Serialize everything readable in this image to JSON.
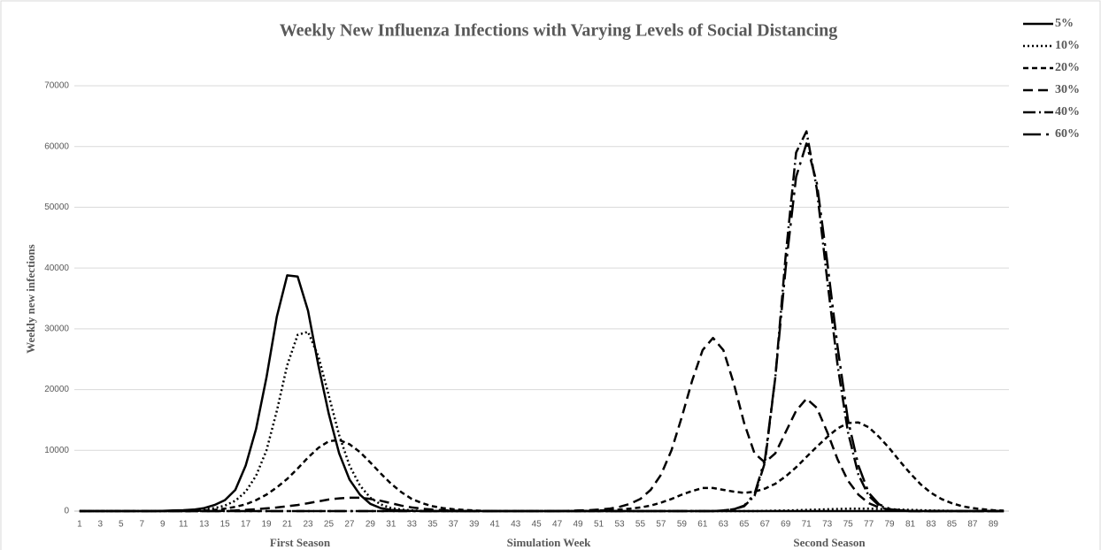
{
  "chart_data": {
    "type": "line",
    "title": "Weekly New Influenza Infections with Varying Levels of Social Distancing",
    "x_label": "Simulation Week",
    "y_label": "Weekly new infections",
    "annotations": [
      "First Season",
      "Second Season"
    ],
    "categories": [
      1,
      null,
      3,
      null,
      5,
      null,
      7,
      null,
      9,
      null,
      11,
      null,
      13,
      null,
      15,
      null,
      17,
      null,
      19,
      null,
      21,
      null,
      23,
      null,
      25,
      null,
      27,
      null,
      29,
      null,
      31,
      null,
      33,
      null,
      35,
      null,
      37,
      null,
      39,
      null,
      41,
      null,
      43,
      null,
      45,
      null,
      47,
      null,
      49,
      null,
      51,
      null,
      53,
      null,
      55,
      null,
      57,
      null,
      59,
      null,
      61,
      null,
      63,
      null,
      65,
      null,
      67,
      null,
      69,
      null,
      71,
      null,
      73,
      null,
      75,
      null,
      77,
      null,
      79,
      null,
      81,
      null,
      83,
      null,
      85,
      null,
      87,
      null,
      89,
      null
    ],
    "ylim": [
      0,
      70000
    ],
    "yticks": [
      0,
      10000,
      20000,
      30000,
      40000,
      50000,
      60000,
      70000
    ],
    "grid": true,
    "legend": "top-right",
    "series": [
      {
        "name": "5%",
        "color": "#000000",
        "dash": "none",
        "values": [
          0,
          0,
          0,
          0,
          0,
          0,
          0,
          0,
          50,
          100,
          150,
          250,
          500,
          1000,
          1800,
          3500,
          7500,
          13500,
          22000,
          32000,
          38800,
          38600,
          33000,
          24000,
          16000,
          9500,
          5200,
          2700,
          1200,
          500,
          200,
          100,
          50,
          0,
          0,
          0,
          0,
          0,
          0,
          0,
          0,
          0,
          0,
          0,
          0,
          0,
          0,
          0,
          0,
          0,
          0,
          0,
          0,
          0,
          0,
          0,
          0,
          0,
          0,
          0,
          0,
          0,
          0,
          0,
          0,
          0,
          0,
          0,
          0,
          0,
          0,
          0,
          0,
          0,
          0,
          0,
          0,
          0,
          0,
          0,
          0,
          0,
          0,
          0,
          0,
          0,
          0,
          0,
          0,
          0
        ]
      },
      {
        "name": "10%",
        "color": "#000000",
        "dash": "2,3",
        "values": [
          0,
          0,
          0,
          0,
          0,
          0,
          0,
          0,
          0,
          50,
          80,
          150,
          300,
          500,
          900,
          1700,
          3200,
          5800,
          10000,
          16500,
          24000,
          29000,
          29500,
          25500,
          19000,
          12500,
          7500,
          4200,
          2200,
          1100,
          500,
          250,
          120,
          50,
          0,
          0,
          0,
          0,
          0,
          0,
          0,
          0,
          0,
          0,
          0,
          0,
          0,
          0,
          0,
          0,
          0,
          0,
          0,
          0,
          0,
          0,
          0,
          0,
          0,
          0,
          0,
          0,
          0,
          0,
          0,
          0,
          50,
          80,
          100,
          150,
          200,
          250,
          300,
          350,
          400,
          400,
          400,
          350,
          300,
          250,
          200,
          150,
          100,
          80,
          50,
          0,
          0,
          0,
          0,
          0
        ]
      },
      {
        "name": "20%",
        "color": "#000000",
        "dash": "6,4",
        "values": [
          0,
          0,
          0,
          0,
          0,
          0,
          0,
          0,
          0,
          0,
          0,
          0,
          100,
          200,
          400,
          700,
          1100,
          1800,
          2700,
          3900,
          5300,
          7000,
          8800,
          10400,
          11500,
          11700,
          11000,
          9700,
          8000,
          6200,
          4500,
          3100,
          2000,
          1300,
          800,
          500,
          300,
          200,
          100,
          50,
          0,
          0,
          0,
          0,
          0,
          0,
          0,
          0,
          0,
          50,
          100,
          150,
          250,
          400,
          600,
          900,
          1400,
          2000,
          2700,
          3300,
          3800,
          3800,
          3500,
          3200,
          3000,
          3200,
          3700,
          4500,
          5700,
          7200,
          8900,
          10600,
          12200,
          13600,
          14500,
          14600,
          13800,
          12200,
          10300,
          8200,
          6200,
          4400,
          3000,
          2000,
          1300,
          800,
          500,
          300,
          150,
          80
        ]
      },
      {
        "name": "30%",
        "color": "#000000",
        "dash": "11,6",
        "values": [
          0,
          0,
          0,
          0,
          0,
          0,
          0,
          0,
          0,
          0,
          0,
          0,
          0,
          0,
          50,
          100,
          200,
          300,
          450,
          600,
          800,
          1000,
          1300,
          1600,
          1900,
          2100,
          2200,
          2200,
          2000,
          1700,
          1300,
          900,
          600,
          400,
          250,
          150,
          80,
          50,
          0,
          0,
          0,
          0,
          0,
          0,
          0,
          0,
          0,
          50,
          100,
          150,
          250,
          400,
          700,
          1200,
          2000,
          3500,
          6000,
          10000,
          15500,
          21500,
          26500,
          28500,
          26500,
          21000,
          14500,
          9500,
          8000,
          9500,
          13000,
          16500,
          18500,
          17000,
          13000,
          8500,
          5000,
          2700,
          1300,
          600,
          250,
          100,
          0,
          0,
          0,
          0,
          0,
          0,
          0,
          0,
          0,
          0
        ]
      },
      {
        "name": "40%",
        "color": "#000000",
        "dash": "14,4,2,4",
        "values": [
          0,
          0,
          0,
          0,
          0,
          0,
          0,
          0,
          0,
          0,
          0,
          0,
          0,
          0,
          0,
          0,
          0,
          0,
          0,
          0,
          0,
          0,
          0,
          0,
          0,
          0,
          0,
          0,
          0,
          0,
          0,
          0,
          0,
          0,
          0,
          0,
          0,
          0,
          0,
          0,
          0,
          0,
          0,
          0,
          0,
          0,
          0,
          0,
          0,
          0,
          0,
          0,
          0,
          0,
          0,
          0,
          0,
          0,
          0,
          0,
          0,
          0,
          100,
          300,
          800,
          2500,
          8000,
          22000,
          42000,
          59000,
          62500,
          53000,
          38000,
          24000,
          13000,
          6000,
          2500,
          900,
          300,
          100,
          0,
          0,
          0,
          0,
          0,
          0,
          0,
          0,
          0,
          0
        ]
      },
      {
        "name": "60%",
        "color": "#000000",
        "dash": "20,6,3,6",
        "values": [
          0,
          0,
          0,
          0,
          0,
          0,
          0,
          0,
          0,
          0,
          0,
          0,
          0,
          0,
          0,
          0,
          0,
          0,
          0,
          0,
          0,
          0,
          0,
          0,
          0,
          0,
          0,
          0,
          0,
          0,
          0,
          0,
          0,
          0,
          0,
          0,
          0,
          0,
          0,
          0,
          0,
          0,
          0,
          0,
          0,
          0,
          0,
          0,
          0,
          0,
          0,
          0,
          0,
          0,
          0,
          0,
          0,
          0,
          0,
          0,
          0,
          0,
          100,
          300,
          900,
          2800,
          8500,
          22000,
          40000,
          55000,
          60500,
          54000,
          41000,
          27000,
          15000,
          7500,
          3000,
          1100,
          400,
          150,
          0,
          0,
          0,
          0,
          0,
          0,
          0,
          0,
          0,
          0
        ]
      }
    ]
  }
}
